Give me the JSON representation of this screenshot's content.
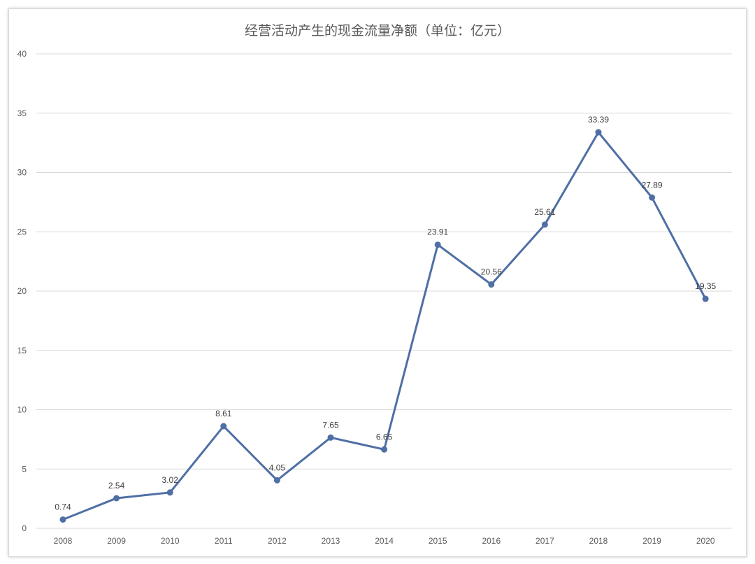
{
  "chart_data": {
    "type": "line",
    "title": "经营活动产生的现金流量净额（单位：亿元）",
    "xlabel": "",
    "ylabel": "",
    "categories": [
      "2008",
      "2009",
      "2010",
      "2011",
      "2012",
      "2013",
      "2014",
      "2015",
      "2016",
      "2017",
      "2018",
      "2019",
      "2020"
    ],
    "series": [
      {
        "values": [
          0.74,
          2.54,
          3.02,
          8.61,
          4.05,
          7.65,
          6.65,
          23.91,
          20.56,
          25.61,
          33.39,
          27.89,
          19.35
        ],
        "labels": [
          "0.74",
          "2.54",
          "3.02",
          "8.61",
          "4.05",
          "7.65",
          "6.65",
          "23.91",
          "20.56",
          "25.61",
          "33.39",
          "27.89",
          "19.35"
        ],
        "color": "#4f6fa5"
      }
    ],
    "ylim": [
      0,
      40
    ],
    "yticks": [
      "0",
      "5",
      "10",
      "15",
      "20",
      "25",
      "30",
      "35",
      "40"
    ],
    "grid": true,
    "legend": "none"
  }
}
